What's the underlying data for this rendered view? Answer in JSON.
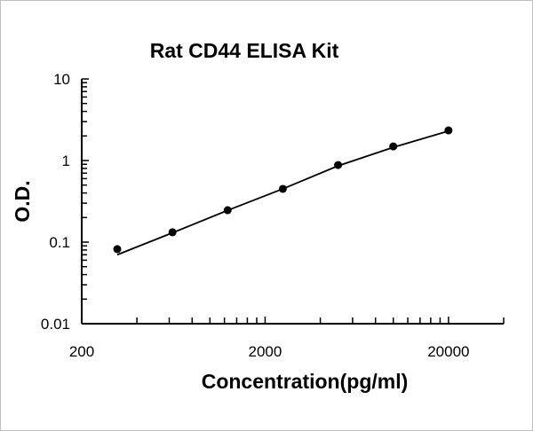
{
  "chart_data": {
    "type": "scatter",
    "title": "Rat CD44 ELISA Kit",
    "xlabel": "Concentration(pg/ml)",
    "ylabel": "O.D.",
    "xscale": "log",
    "yscale": "log",
    "xlim": [
      200,
      40000
    ],
    "ylim": [
      0.01,
      10
    ],
    "xticks": [
      {
        "value": 200,
        "label": "200"
      },
      {
        "value": 2000,
        "label": "2000"
      },
      {
        "value": 20000,
        "label": "20000"
      }
    ],
    "yticks": [
      {
        "value": 10,
        "label": "10"
      },
      {
        "value": 1,
        "label": "1"
      },
      {
        "value": 0.1,
        "label": "0.1"
      },
      {
        "value": 0.01,
        "label": "0.01"
      }
    ],
    "grid": false,
    "series": [
      {
        "x": [
          312.5,
          625,
          1250,
          2500,
          5000,
          10000,
          20000
        ],
        "y": [
          0.082,
          0.132,
          0.246,
          0.449,
          0.88,
          1.49,
          2.34
        ],
        "fit": [
          0.07,
          0.13,
          0.245,
          0.45,
          0.86,
          1.45,
          2.3
        ]
      }
    ],
    "colors": {
      "points": "#000000",
      "line": "#000000"
    }
  }
}
